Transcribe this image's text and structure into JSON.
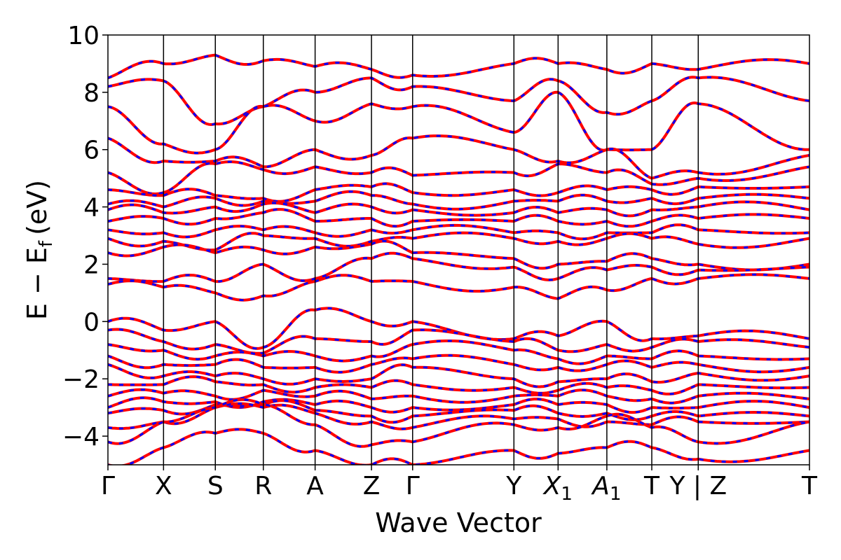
{
  "chart_data": {
    "type": "line",
    "xlabel": "Wave Vector",
    "ylabel": "E − E",
    "ylabel_sub": "f",
    "ylabel_unit": "(eV)",
    "ylim": [
      -5,
      10
    ],
    "yticks": [
      -4,
      -2,
      0,
      2,
      4,
      6,
      8,
      10
    ],
    "ytick_labels": [
      "−4",
      "−2",
      "0",
      "2",
      "4",
      "6",
      "8",
      "10"
    ],
    "xlim": [
      0,
      13.3
    ],
    "kpath": [
      {
        "label": "Γ",
        "x": 0.0
      },
      {
        "label": "X",
        "x": 0.73
      },
      {
        "label": "S",
        "x": 1.41
      },
      {
        "label": "R",
        "x": 2.04
      },
      {
        "label": "A",
        "x": 2.72
      },
      {
        "label": "Z",
        "x": 3.46
      },
      {
        "label": "Γ",
        "x": 4.0
      },
      {
        "label": "Y",
        "x": 5.33
      },
      {
        "label": "X",
        "sub": "1",
        "x": 5.91
      },
      {
        "label": "A",
        "sub": "1",
        "x": 6.55
      },
      {
        "label": "T",
        "x": 7.14
      },
      {
        "label": "Y | Z",
        "x": 7.75
      },
      {
        "label": "T",
        "x": 9.21
      }
    ],
    "series_colors": {
      "spin_up": "#0000ff",
      "spin_down": "#ff0000"
    },
    "grid": false,
    "legend": "none",
    "bands_approx": [
      [
        8.5,
        9.0,
        9.3,
        9.1,
        8.9,
        8.8,
        8.6,
        9.0,
        9.0,
        8.8,
        9.0,
        8.8,
        9.0
      ],
      [
        8.2,
        8.4,
        6.9,
        7.5,
        8.0,
        8.5,
        8.2,
        7.7,
        8.4,
        7.3,
        7.7,
        8.5,
        7.7
      ],
      [
        7.5,
        6.2,
        6.0,
        7.5,
        7.0,
        7.6,
        7.5,
        6.6,
        8.0,
        6.0,
        6.0,
        7.6,
        6.0
      ],
      [
        6.4,
        5.6,
        5.6,
        5.4,
        6.0,
        5.8,
        6.4,
        6.0,
        5.6,
        6.0,
        5.0,
        5.2,
        5.8
      ],
      [
        5.2,
        4.5,
        5.5,
        5.3,
        5.4,
        5.2,
        5.1,
        5.2,
        5.5,
        5.2,
        4.8,
        5.0,
        5.4
      ],
      [
        4.6,
        4.4,
        4.4,
        4.3,
        4.6,
        4.7,
        4.5,
        4.6,
        4.5,
        4.6,
        4.6,
        4.7,
        4.7
      ],
      [
        4.1,
        4.0,
        4.3,
        4.2,
        4.2,
        4.4,
        4.1,
        4.2,
        4.2,
        4.2,
        4.3,
        4.3,
        4.3
      ],
      [
        3.9,
        3.8,
        4.0,
        4.1,
        3.8,
        4.0,
        3.9,
        3.8,
        3.8,
        3.9,
        3.9,
        4.0,
        3.9
      ],
      [
        3.5,
        3.6,
        3.6,
        3.8,
        3.5,
        3.6,
        3.5,
        3.5,
        3.5,
        3.5,
        3.5,
        3.6,
        3.6
      ],
      [
        3.2,
        3.1,
        3.2,
        3.2,
        3.1,
        3.2,
        3.2,
        3.1,
        3.1,
        3.1,
        3.1,
        3.2,
        3.1
      ],
      [
        2.9,
        2.8,
        2.5,
        3.0,
        2.9,
        2.8,
        2.9,
        2.9,
        2.8,
        2.9,
        2.9,
        2.7,
        2.9
      ],
      [
        2.4,
        2.6,
        2.4,
        2.5,
        2.6,
        2.7,
        2.4,
        2.2,
        2.0,
        2.1,
        2.2,
        2.0,
        2.0
      ],
      [
        1.5,
        1.4,
        1.4,
        2.0,
        1.5,
        2.2,
        2.2,
        1.9,
        1.5,
        1.8,
        1.9,
        1.8,
        1.9
      ],
      [
        1.3,
        1.2,
        1.0,
        0.9,
        1.4,
        1.4,
        1.4,
        1.2,
        0.8,
        1.1,
        1.5,
        1.5,
        1.5
      ],
      [
        0.0,
        -0.3,
        0.0,
        -0.9,
        0.4,
        0.0,
        0.0,
        -0.6,
        -0.5,
        0.0,
        -0.6,
        -0.5,
        -0.6
      ],
      [
        -0.3,
        -0.7,
        -0.8,
        -1.1,
        -0.6,
        -0.7,
        -0.3,
        -0.7,
        -1.0,
        -0.8,
        -0.9,
        -0.7,
        -0.9
      ],
      [
        -0.8,
        -1.0,
        -1.2,
        -1.2,
        -1.2,
        -1.2,
        -0.8,
        -1.0,
        -1.3,
        -1.2,
        -1.3,
        -1.2,
        -1.3
      ],
      [
        -1.2,
        -1.5,
        -1.5,
        -1.6,
        -1.6,
        -1.5,
        -1.3,
        -1.5,
        -1.6,
        -1.5,
        -1.6,
        -1.5,
        -1.6
      ],
      [
        -1.5,
        -1.9,
        -1.9,
        -2.0,
        -2.0,
        -2.0,
        -1.6,
        -2.0,
        -2.1,
        -2.0,
        -2.1,
        -1.8,
        -1.9
      ],
      [
        -2.2,
        -2.2,
        -2.1,
        -2.2,
        -2.3,
        -2.3,
        -2.2,
        -2.3,
        -2.4,
        -2.3,
        -2.4,
        -2.2,
        -2.3
      ],
      [
        -2.6,
        -2.5,
        -2.6,
        -2.4,
        -2.6,
        -2.7,
        -2.6,
        -2.6,
        -2.6,
        -2.6,
        -2.7,
        -2.6,
        -2.7
      ],
      [
        -3.0,
        -2.8,
        -2.8,
        -2.8,
        -2.9,
        -3.0,
        -3.0,
        -2.9,
        -2.9,
        -2.9,
        -3.0,
        -3.0,
        -3.0
      ],
      [
        -3.2,
        -3.1,
        -2.9,
        -2.9,
        -3.1,
        -3.3,
        -3.3,
        -3.1,
        -3.2,
        -3.2,
        -3.3,
        -3.3,
        -3.3
      ],
      [
        -3.7,
        -3.5,
        -3.0,
        -3.0,
        -3.2,
        -3.5,
        -3.7,
        -3.4,
        -3.4,
        -3.5,
        -3.6,
        -3.5,
        -3.5
      ],
      [
        -4.2,
        -3.5,
        -3.0,
        -2.9,
        -3.6,
        -4.3,
        -4.2,
        -3.6,
        -3.7,
        -3.3,
        -3.7,
        -4.2,
        -3.5
      ],
      [
        -5.0,
        -4.4,
        -3.9,
        -3.9,
        -4.5,
        -5.0,
        -5.0,
        -4.5,
        -4.6,
        -4.4,
        -4.4,
        -4.8,
        -4.5
      ]
    ]
  }
}
